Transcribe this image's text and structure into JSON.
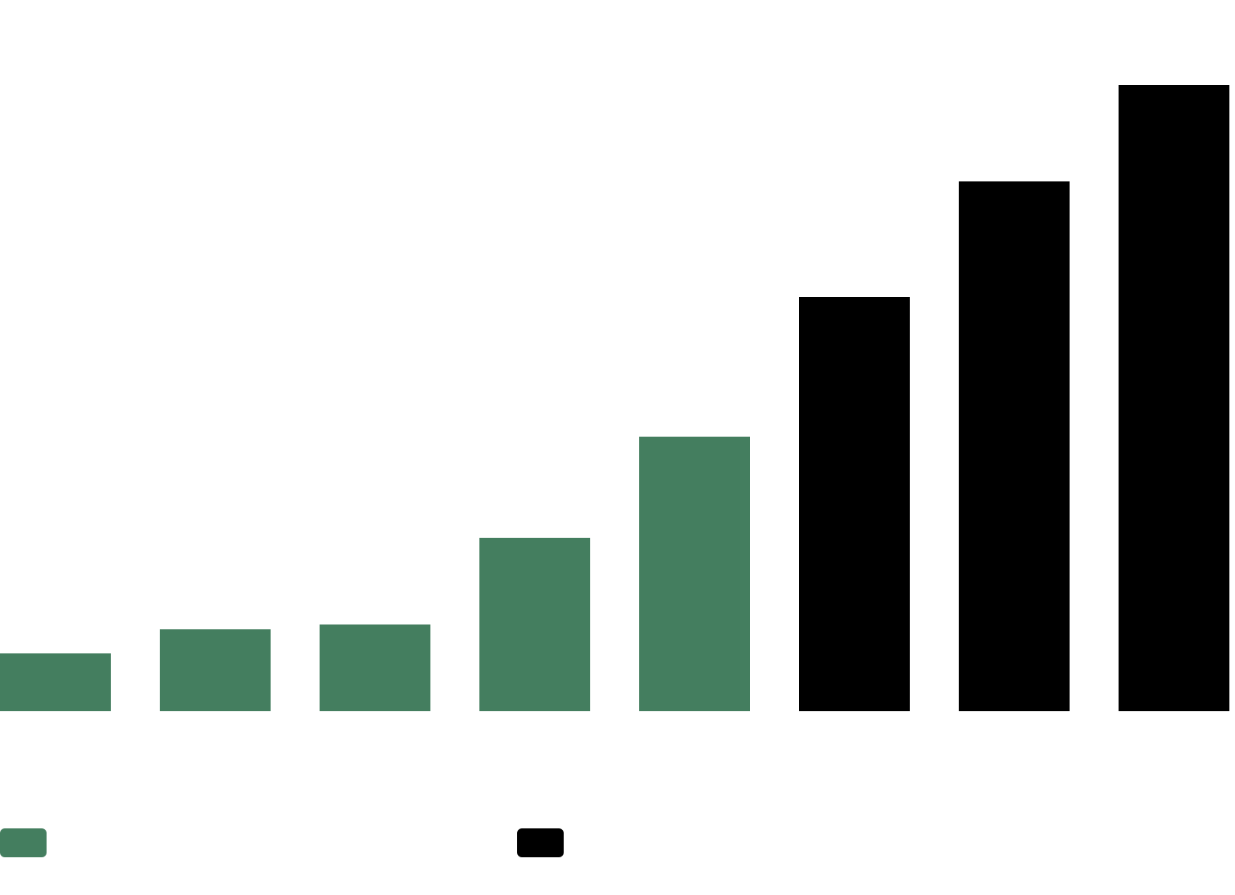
{
  "colors": {
    "series_green": "#447e5f",
    "series_black": "#000000",
    "background": "#ffffff"
  },
  "chart_data": {
    "type": "bar",
    "categories": [
      "",
      "",
      "",
      "",
      "",
      "",
      "",
      ""
    ],
    "series": [
      {
        "color": "#447e5f",
        "values": [
          72,
          102,
          108,
          216,
          342,
          null,
          null,
          null
        ]
      },
      {
        "color": "#000000",
        "values": [
          null,
          null,
          null,
          null,
          null,
          516,
          660,
          780
        ]
      }
    ],
    "ylim": [
      0,
      780
    ],
    "grid": false,
    "legend": "bottom-left"
  }
}
